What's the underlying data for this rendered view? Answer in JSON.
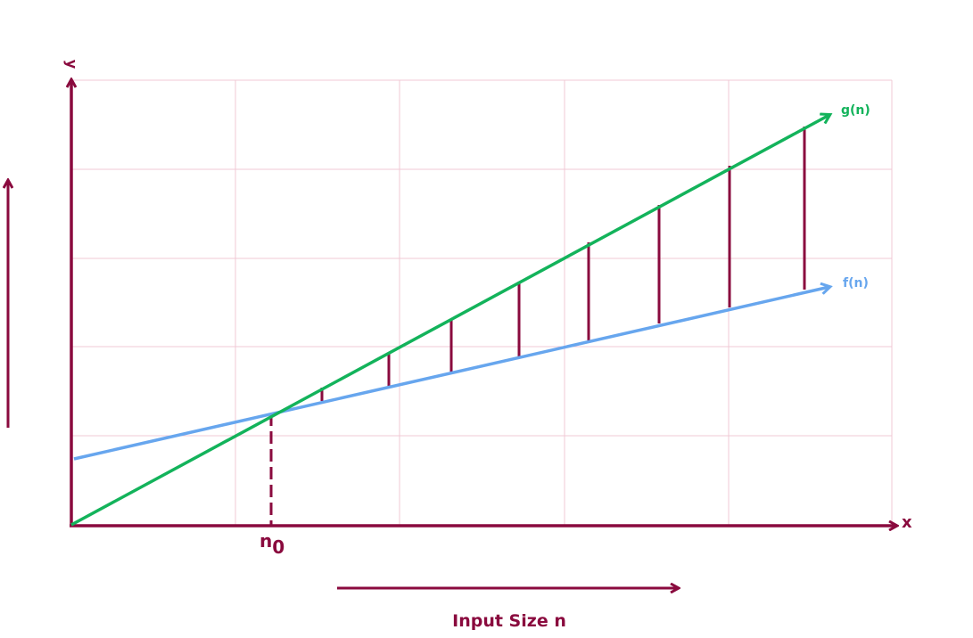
{
  "labels": {
    "y_axis": "y",
    "x_axis": "x",
    "n0_base": "n",
    "n0_sub": "0",
    "g_curve": "g(n)",
    "f_curve": "f(n)",
    "input_size": "Input Size n"
  },
  "colors": {
    "axis": "#8a0a3e",
    "grid": "#f0c8d4",
    "g_line": "#13b35b",
    "f_line": "#67a6ee",
    "gap_bar": "#8a0a3e",
    "background": "#ffffff"
  }
}
